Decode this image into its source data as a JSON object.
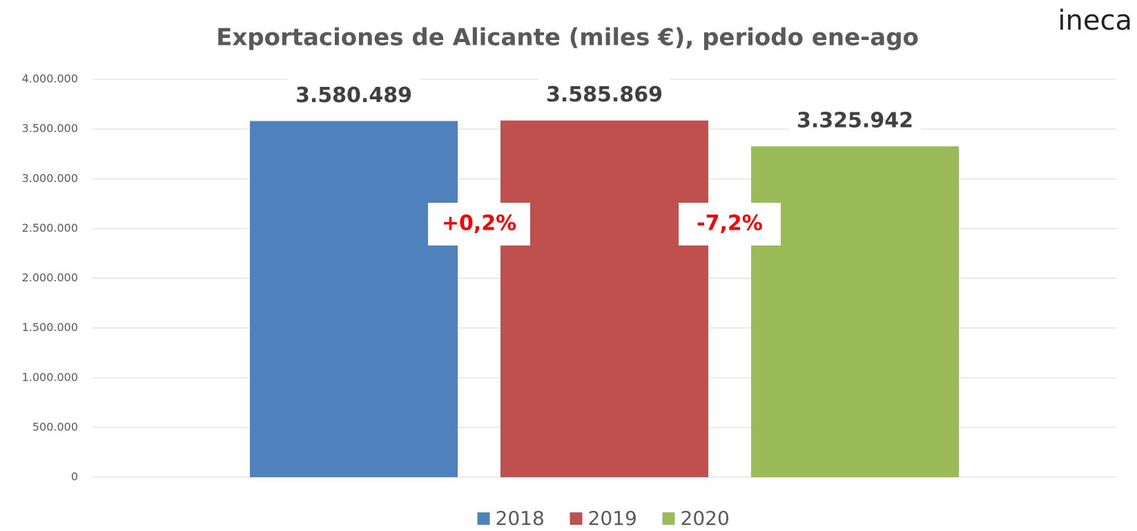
{
  "chart_data": {
    "type": "bar",
    "title": "Exportaciones de Alicante (miles €), periodo ene-ago",
    "logo": "ineca",
    "categories": [
      null
    ],
    "series": [
      {
        "name": "2018",
        "color": "#4f81bd",
        "values": [
          3580489
        ],
        "value_labels": [
          "3.580.489"
        ]
      },
      {
        "name": "2019",
        "color": "#c0504d",
        "values": [
          3585869
        ],
        "value_labels": [
          "3.585.869"
        ]
      },
      {
        "name": "2020",
        "color": "#9bbb59",
        "values": [
          3325942
        ],
        "value_labels": [
          "3.325.942"
        ]
      }
    ],
    "annotations": [
      "+0,2%",
      "-7,2%"
    ],
    "ylim": [
      0,
      4000000
    ],
    "yticks": [
      0,
      {
        "value": 500000,
        "label": "500.000"
      },
      {
        "value": 1000000,
        "label": "1.000.000"
      },
      {
        "value": 1500000,
        "label": "1.500.000"
      },
      {
        "value": 2000000,
        "label": "2.000.000"
      },
      {
        "value": 2500000,
        "label": "2.500.000"
      },
      {
        "value": 3000000,
        "label": "3.000.000"
      },
      {
        "value": 3500000,
        "label": "3.500.000"
      },
      {
        "value": 4000000,
        "label": "4.000.000"
      }
    ],
    "grid": true,
    "legend": "bottom"
  }
}
